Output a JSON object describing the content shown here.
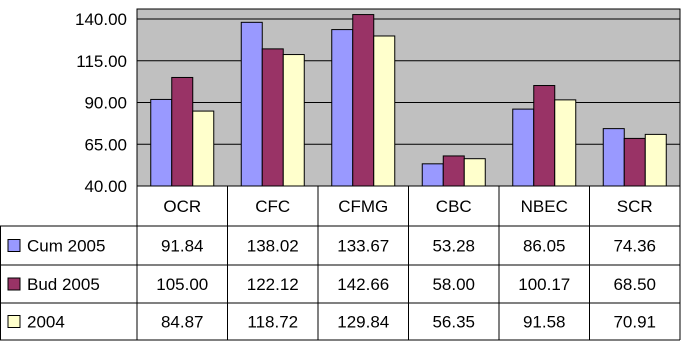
{
  "chart_data": {
    "type": "bar",
    "title": "",
    "xlabel": "",
    "ylabel": "",
    "categories": [
      "OCR",
      "CFC",
      "CFMG",
      "CBC",
      "NBEC",
      "SCR"
    ],
    "series": [
      {
        "name": "Cum 2005",
        "color": "#9999FF",
        "values": [
          "91.84",
          "138.02",
          "133.67",
          "53.28",
          "86.05",
          "74.36"
        ]
      },
      {
        "name": "Bud 2005",
        "color": "#993366",
        "values": [
          "105.00",
          "122.12",
          "142.66",
          "58.00",
          "100.17",
          "68.50"
        ]
      },
      {
        "name": "2004",
        "color": "#FFFFCC",
        "values": [
          "84.87",
          "118.72",
          "129.84",
          "56.35",
          "91.58",
          "70.91"
        ]
      }
    ],
    "ylim": [
      40,
      146
    ],
    "yticks": [
      "40.00",
      "65.00",
      "90.00",
      "115.00",
      "140.00"
    ],
    "plot_background": "#C0C0C0",
    "grid": true,
    "legend": "data-table",
    "data_table": true
  }
}
